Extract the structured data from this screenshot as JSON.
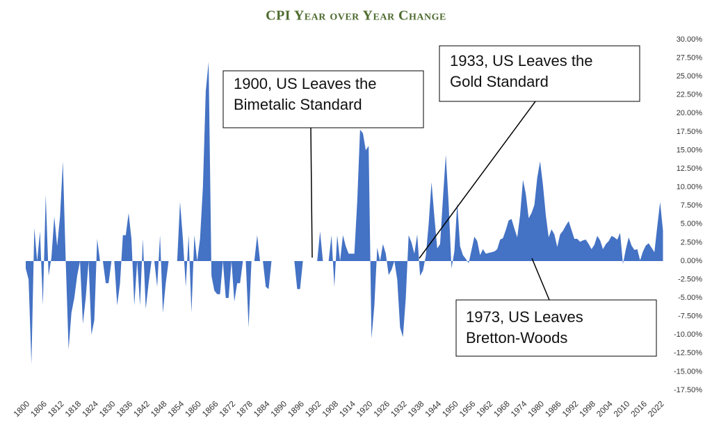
{
  "chart_data": {
    "type": "area",
    "title": "CPI Year over Year Change",
    "x": [
      1800,
      1801,
      1802,
      1803,
      1804,
      1805,
      1806,
      1807,
      1808,
      1809,
      1810,
      1811,
      1812,
      1813,
      1814,
      1815,
      1816,
      1817,
      1818,
      1819,
      1820,
      1821,
      1822,
      1823,
      1824,
      1825,
      1826,
      1827,
      1828,
      1829,
      1830,
      1831,
      1832,
      1833,
      1834,
      1835,
      1836,
      1837,
      1838,
      1839,
      1840,
      1841,
      1842,
      1843,
      1844,
      1845,
      1846,
      1847,
      1848,
      1849,
      1850,
      1851,
      1852,
      1853,
      1854,
      1855,
      1856,
      1857,
      1858,
      1859,
      1860,
      1861,
      1862,
      1863,
      1864,
      1865,
      1866,
      1867,
      1868,
      1869,
      1870,
      1871,
      1872,
      1873,
      1874,
      1875,
      1876,
      1877,
      1878,
      1879,
      1880,
      1881,
      1882,
      1883,
      1884,
      1885,
      1886,
      1887,
      1888,
      1889,
      1890,
      1891,
      1892,
      1893,
      1894,
      1895,
      1896,
      1897,
      1898,
      1899,
      1900,
      1901,
      1902,
      1903,
      1904,
      1905,
      1906,
      1907,
      1908,
      1909,
      1910,
      1911,
      1912,
      1913,
      1914,
      1915,
      1916,
      1917,
      1918,
      1919,
      1920,
      1921,
      1922,
      1923,
      1924,
      1925,
      1926,
      1927,
      1928,
      1929,
      1930,
      1931,
      1932,
      1933,
      1934,
      1935,
      1936,
      1937,
      1938,
      1939,
      1940,
      1941,
      1942,
      1943,
      1944,
      1945,
      1946,
      1947,
      1948,
      1949,
      1950,
      1951,
      1952,
      1953,
      1954,
      1955,
      1956,
      1957,
      1958,
      1959,
      1960,
      1961,
      1962,
      1963,
      1964,
      1965,
      1966,
      1967,
      1968,
      1969,
      1970,
      1971,
      1972,
      1973,
      1974,
      1975,
      1976,
      1977,
      1978,
      1979,
      1980,
      1981,
      1982,
      1983,
      1984,
      1985,
      1986,
      1987,
      1988,
      1989,
      1990,
      1991,
      1992,
      1993,
      1994,
      1995,
      1996,
      1997,
      1998,
      1999,
      2000,
      2001,
      2002,
      2003,
      2004,
      2005,
      2006,
      2007,
      2008,
      2009,
      2010,
      2011,
      2012,
      2013,
      2014,
      2015,
      2016,
      2017,
      2018,
      2019,
      2020,
      2021,
      2022,
      2023
    ],
    "values": [
      -1,
      -2.5,
      -14,
      4.5,
      0,
      4,
      -6,
      9,
      -2,
      0.5,
      6,
      2,
      6,
      13.5,
      0,
      -12,
      -7,
      -5,
      -2,
      0,
      -8.5,
      -5,
      0,
      -10,
      -8,
      3,
      0,
      0,
      -3,
      -3,
      0,
      0,
      -6,
      -3,
      3.5,
      3.5,
      6.5,
      3,
      -6,
      0,
      -6,
      3,
      -6.5,
      -3,
      0,
      0,
      -3.5,
      3.5,
      -7,
      -3,
      0,
      0,
      0,
      0,
      8,
      3,
      -3.5,
      3.5,
      -7,
      3.5,
      0,
      3,
      10,
      23,
      27,
      -2,
      -4,
      -4.5,
      -4.5,
      0,
      -5,
      -5,
      0,
      -5.5,
      -3,
      -3,
      0,
      0,
      -9,
      0,
      0,
      3.5,
      0,
      0,
      -3.5,
      -3.8,
      0,
      0,
      0,
      0,
      0,
      0,
      0,
      0,
      0,
      -3.8,
      -3.8,
      0,
      0,
      0,
      0,
      0,
      0,
      4,
      0,
      0,
      0,
      3.5,
      -3.5,
      3.5,
      0,
      3.5,
      2,
      1,
      1,
      1,
      8,
      17.8,
      17.3,
      15,
      15.6,
      -10.5,
      -6,
      1.8,
      0,
      2.3,
      1,
      -1.9,
      -1.2,
      0,
      -2.5,
      -9,
      -10.3,
      -5,
      3.5,
      2.5,
      1,
      3.6,
      -2,
      -1.3,
      0.7,
      5,
      10.7,
      6,
      1.7,
      2.3,
      8.5,
      14.4,
      7.7,
      -1,
      1.3,
      7.9,
      2,
      0.8,
      0.3,
      -0.3,
      1.5,
      3.3,
      2.7,
      0.8,
      1.6,
      1,
      1.1,
      1.2,
      1.3,
      1.6,
      2.9,
      3.1,
      4.2,
      5.5,
      5.7,
      4.4,
      3.2,
      6.2,
      11,
      9.1,
      5.8,
      6.5,
      7.6,
      11.3,
      13.5,
      10.3,
      6.2,
      3.2,
      4.3,
      3.6,
      1.9,
      3.6,
      4.1,
      4.8,
      5.4,
      4.2,
      3,
      3,
      2.6,
      2.8,
      2.9,
      2.3,
      1.6,
      2.2,
      3.4,
      2.8,
      1.6,
      2.3,
      2.7,
      3.4,
      3.2,
      2.9,
      3.8,
      -0.4,
      1.6,
      3.2,
      2.1,
      1.5,
      1.6,
      0.1,
      1.3,
      2.1,
      2.4,
      1.8,
      1.2,
      4.7,
      8,
      4.1
    ],
    "color": "#4472c4",
    "xlim": [
      1800,
      2023
    ],
    "xticks": [
      1800,
      1806,
      1812,
      1818,
      1824,
      1830,
      1836,
      1842,
      1848,
      1854,
      1860,
      1866,
      1872,
      1878,
      1884,
      1890,
      1896,
      1902,
      1908,
      1914,
      1920,
      1926,
      1932,
      1938,
      1944,
      1950,
      1956,
      1962,
      1968,
      1974,
      1980,
      1986,
      1992,
      1998,
      2004,
      2010,
      2016,
      2022
    ],
    "ylim": [
      -17.5,
      30
    ],
    "yticks": [
      {
        "value": 30,
        "label": "30.00%"
      },
      {
        "value": 27.5,
        "label": "27.50%"
      },
      {
        "value": 25,
        "label": "25.00%"
      },
      {
        "value": 22.5,
        "label": "22.50%"
      },
      {
        "value": 20,
        "label": "20.00%"
      },
      {
        "value": 17.5,
        "label": "17.50%"
      },
      {
        "value": 15,
        "label": "15.00%"
      },
      {
        "value": 12.5,
        "label": "12.50%"
      },
      {
        "value": 10,
        "label": "10.00%"
      },
      {
        "value": 7.5,
        "label": "7.50%"
      },
      {
        "value": 5,
        "label": "5.00%"
      },
      {
        "value": 2.5,
        "label": "2.50%"
      },
      {
        "value": 0,
        "label": "0.00%"
      },
      {
        "value": -2.5,
        "label": "-2.50%"
      },
      {
        "value": -5,
        "label": "-5.00%"
      },
      {
        "value": -7.5,
        "label": "-7.50%"
      },
      {
        "value": -10,
        "label": "-10.00%"
      },
      {
        "value": -12.5,
        "label": "-12.50%"
      },
      {
        "value": -15,
        "label": "-15.00%"
      },
      {
        "value": -17.5,
        "label": "-17.50%"
      }
    ],
    "grid": false,
    "annotations": [
      {
        "lines": [
          "1900, US Leaves the",
          "Bimetalic Standard"
        ]
      },
      {
        "lines": [
          "1933, US Leaves the",
          "Gold Standard"
        ]
      },
      {
        "lines": [
          "1973, US Leaves",
          "Bretton-Woods"
        ]
      }
    ]
  }
}
